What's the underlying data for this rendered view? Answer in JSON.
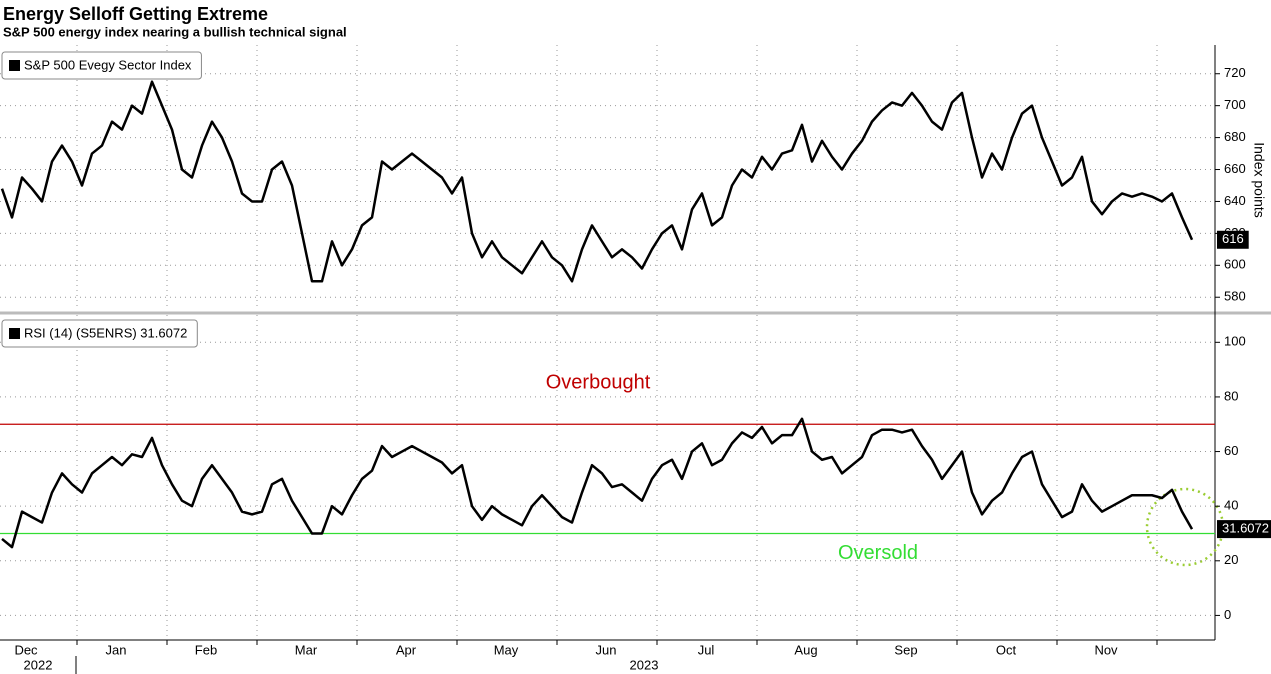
{
  "chart_data": [
    {
      "type": "line",
      "title": "Energy Selloff Getting Extreme",
      "subtitle": "S&P 500 energy index nearing a bullish technical signal",
      "y_axis_label": "Index points",
      "legend_position": "upper left",
      "ylim": [
        572,
        738
      ],
      "yticks": [
        580,
        600,
        620,
        640,
        660,
        680,
        700,
        720
      ],
      "grid": true,
      "series": [
        {
          "name": "S&P 500 Evegy Sector Index",
          "color": "#000000",
          "values": [
            648,
            630,
            655,
            648,
            640,
            665,
            675,
            665,
            650,
            670,
            675,
            690,
            685,
            700,
            695,
            715,
            700,
            685,
            660,
            655,
            675,
            690,
            680,
            665,
            645,
            640,
            640,
            660,
            665,
            650,
            620,
            590,
            590,
            615,
            600,
            610,
            625,
            630,
            665,
            660,
            665,
            670,
            665,
            660,
            655,
            645,
            655,
            620,
            605,
            615,
            605,
            600,
            595,
            605,
            615,
            605,
            600,
            590,
            610,
            625,
            615,
            605,
            610,
            605,
            598,
            610,
            620,
            625,
            610,
            635,
            645,
            625,
            630,
            650,
            660,
            655,
            668,
            660,
            670,
            672,
            688,
            665,
            678,
            668,
            660,
            670,
            678,
            690,
            697,
            702,
            700,
            708,
            700,
            690,
            685,
            702,
            708,
            680,
            655,
            670,
            660,
            680,
            695,
            700,
            680,
            665,
            650,
            655,
            668,
            640,
            632,
            640,
            645,
            643,
            645,
            643,
            640,
            645,
            630,
            616
          ]
        }
      ]
    },
    {
      "type": "line",
      "legend_position": "upper left",
      "categories": [
        null,
        null,
        null,
        "Dec",
        null,
        null,
        null,
        null,
        null,
        null,
        null,
        null,
        "Jan",
        null,
        null,
        null,
        null,
        null,
        null,
        null,
        null,
        "Feb",
        null,
        null,
        null,
        null,
        null,
        null,
        null,
        null,
        null,
        "Mar",
        null,
        null,
        null,
        null,
        null,
        null,
        null,
        null,
        null,
        "Apr",
        null,
        null,
        null,
        null,
        null,
        null,
        null,
        null,
        null,
        "May",
        null,
        null,
        null,
        null,
        null,
        null,
        null,
        null,
        null,
        "Jun",
        null,
        null,
        null,
        null,
        null,
        null,
        null,
        null,
        null,
        "Jul",
        null,
        null,
        null,
        null,
        null,
        null,
        null,
        null,
        null,
        "Aug",
        null,
        null,
        null,
        null,
        null,
        null,
        null,
        null,
        null,
        "Sep",
        null,
        null,
        null,
        null,
        null,
        null,
        null,
        null,
        null,
        "Oct",
        null,
        null,
        null,
        null,
        null,
        null,
        null,
        null,
        null,
        "Nov",
        null,
        null,
        null,
        null,
        null,
        null,
        null,
        null
      ],
      "years": [
        "2022",
        "2023"
      ],
      "ylim": [
        -9,
        110
      ],
      "yticks": [
        0,
        20,
        40,
        60,
        80,
        100
      ],
      "grid": true,
      "reference_lines": [
        {
          "value": 70,
          "label": "Overbought",
          "color": "#c00000"
        },
        {
          "value": 30,
          "label": "Oversold",
          "color": "#33dd33"
        }
      ],
      "series": [
        {
          "name": "RSI (14) (S5ENRS) 31.6072",
          "color": "#000000",
          "values": [
            28,
            25,
            38,
            36,
            34,
            45,
            52,
            48,
            45,
            52,
            55,
            58,
            55,
            59,
            58,
            65,
            55,
            48,
            42,
            40,
            50,
            55,
            50,
            45,
            38,
            37,
            38,
            48,
            50,
            42,
            36,
            30,
            30,
            40,
            37,
            44,
            50,
            53,
            62,
            58,
            60,
            62,
            60,
            58,
            56,
            52,
            55,
            40,
            35,
            40,
            37,
            35,
            33,
            40,
            44,
            40,
            36,
            34,
            45,
            55,
            52,
            47,
            48,
            45,
            42,
            50,
            55,
            57,
            50,
            60,
            63,
            55,
            57,
            63,
            67,
            65,
            69,
            63,
            66,
            66,
            72,
            60,
            57,
            58,
            52,
            55,
            58,
            66,
            68,
            68,
            67,
            68,
            62,
            57,
            50,
            55,
            60,
            45,
            37,
            42,
            45,
            52,
            58,
            60,
            48,
            42,
            36,
            38,
            48,
            42,
            38,
            40,
            42,
            44,
            44,
            44,
            43,
            46,
            38,
            31.6072
          ]
        }
      ]
    }
  ]
}
